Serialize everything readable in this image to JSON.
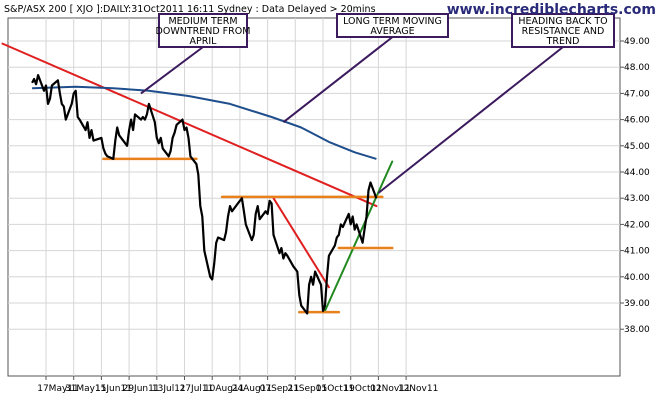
{
  "header": {
    "title": "S&P/ASX 200 [ XJO ]:DAILY:31Oct2011 16:11 Sydney : Data Delayed > 20mins",
    "brand": "www.incrediblecharts.com"
  },
  "chart_data": {
    "type": "line",
    "title": "S&P/ASX 200 [ XJO ]:DAILY:31Oct2011 16:11 Sydney : Data Delayed > 20mins",
    "xlabel": "",
    "ylabel": "",
    "ylim": [
      37.0,
      49.6
    ],
    "y_ticks": [
      "38.00",
      "39.00",
      "40.00",
      "41.00",
      "42.00",
      "43.00",
      "44.00",
      "45.00",
      "46.00",
      "47.00",
      "48.00",
      "49.00"
    ],
    "x_ticks": [
      "17May11",
      "31May11",
      "15Jun11",
      "29Jun11",
      "13Jul11",
      "27Jul11",
      "10Aug11",
      "24Aug11",
      "07Sep11",
      "21Sep11",
      "05Oct11",
      "19Oct11",
      "02Nov11",
      "12Nov11"
    ],
    "grid": true,
    "series": [
      {
        "role": "price",
        "color": "#000000",
        "points": [
          [
            "2011-05-10",
            47.4
          ],
          [
            "2011-05-11",
            47.55
          ],
          [
            "2011-05-12",
            47.35
          ],
          [
            "2011-05-13",
            47.7
          ],
          [
            "2011-05-16",
            47.1
          ],
          [
            "2011-05-17",
            47.3
          ],
          [
            "2011-05-18",
            46.6
          ],
          [
            "2011-05-19",
            46.8
          ],
          [
            "2011-05-20",
            47.3
          ],
          [
            "2011-05-23",
            47.5
          ],
          [
            "2011-05-24",
            47.0
          ],
          [
            "2011-05-25",
            46.6
          ],
          [
            "2011-05-26",
            46.5
          ],
          [
            "2011-05-27",
            46.0
          ],
          [
            "2011-05-30",
            46.6
          ],
          [
            "2011-05-31",
            47.0
          ],
          [
            "2011-06-01",
            47.1
          ],
          [
            "2011-06-02",
            46.1
          ],
          [
            "2011-06-03",
            46.0
          ],
          [
            "2011-06-06",
            45.6
          ],
          [
            "2011-06-07",
            45.9
          ],
          [
            "2011-06-08",
            45.3
          ],
          [
            "2011-06-09",
            45.6
          ],
          [
            "2011-06-10",
            45.2
          ],
          [
            "2011-06-14",
            45.3
          ],
          [
            "2011-06-15",
            44.9
          ],
          [
            "2011-06-16",
            44.7
          ],
          [
            "2011-06-17",
            44.6
          ],
          [
            "2011-06-20",
            44.5
          ],
          [
            "2011-06-21",
            45.2
          ],
          [
            "2011-06-22",
            45.7
          ],
          [
            "2011-06-23",
            45.4
          ],
          [
            "2011-06-24",
            45.3
          ],
          [
            "2011-06-27",
            45.0
          ],
          [
            "2011-06-28",
            45.6
          ],
          [
            "2011-06-29",
            46.0
          ],
          [
            "2011-06-30",
            45.6
          ],
          [
            "2011-07-01",
            46.2
          ],
          [
            "2011-07-04",
            46.0
          ],
          [
            "2011-07-05",
            46.1
          ],
          [
            "2011-07-06",
            46.0
          ],
          [
            "2011-07-07",
            46.2
          ],
          [
            "2011-07-08",
            46.6
          ],
          [
            "2011-07-11",
            45.9
          ],
          [
            "2011-07-12",
            45.3
          ],
          [
            "2011-07-13",
            45.1
          ],
          [
            "2011-07-14",
            45.3
          ],
          [
            "2011-07-15",
            44.9
          ],
          [
            "2011-07-18",
            44.6
          ],
          [
            "2011-07-19",
            44.8
          ],
          [
            "2011-07-20",
            45.3
          ],
          [
            "2011-07-21",
            45.5
          ],
          [
            "2011-07-22",
            45.8
          ],
          [
            "2011-07-25",
            46.0
          ],
          [
            "2011-07-26",
            45.6
          ],
          [
            "2011-07-27",
            45.7
          ],
          [
            "2011-07-28",
            45.3
          ],
          [
            "2011-07-29",
            44.6
          ],
          [
            "2011-08-01",
            44.3
          ],
          [
            "2011-08-02",
            43.9
          ],
          [
            "2011-08-03",
            42.7
          ],
          [
            "2011-08-04",
            42.3
          ],
          [
            "2011-08-05",
            41.0
          ],
          [
            "2011-08-08",
            40.0
          ],
          [
            "2011-08-09",
            39.9
          ],
          [
            "2011-08-10",
            40.5
          ],
          [
            "2011-08-11",
            41.3
          ],
          [
            "2011-08-12",
            41.5
          ],
          [
            "2011-08-15",
            41.4
          ],
          [
            "2011-08-16",
            41.7
          ],
          [
            "2011-08-17",
            42.3
          ],
          [
            "2011-08-18",
            42.7
          ],
          [
            "2011-08-19",
            42.5
          ],
          [
            "2011-08-22",
            42.8
          ],
          [
            "2011-08-23",
            42.9
          ],
          [
            "2011-08-24",
            43.0
          ],
          [
            "2011-08-25",
            42.5
          ],
          [
            "2011-08-26",
            42.0
          ],
          [
            "2011-08-29",
            41.4
          ],
          [
            "2011-08-30",
            41.6
          ],
          [
            "2011-08-31",
            42.4
          ],
          [
            "2011-09-01",
            42.7
          ],
          [
            "2011-09-02",
            42.2
          ],
          [
            "2011-09-05",
            42.5
          ],
          [
            "2011-09-06",
            42.4
          ],
          [
            "2011-09-07",
            42.9
          ],
          [
            "2011-09-08",
            42.8
          ],
          [
            "2011-09-09",
            41.6
          ],
          [
            "2011-09-12",
            40.9
          ],
          [
            "2011-09-13",
            41.1
          ],
          [
            "2011-09-14",
            40.7
          ],
          [
            "2011-09-15",
            40.9
          ],
          [
            "2011-09-16",
            40.8
          ],
          [
            "2011-09-19",
            40.4
          ],
          [
            "2011-09-20",
            40.3
          ],
          [
            "2011-09-21",
            40.2
          ],
          [
            "2011-09-22",
            39.3
          ],
          [
            "2011-09-23",
            38.9
          ],
          [
            "2011-09-26",
            38.6
          ],
          [
            "2011-09-27",
            39.7
          ],
          [
            "2011-09-28",
            40.0
          ],
          [
            "2011-09-29",
            39.7
          ],
          [
            "2011-09-30",
            40.2
          ],
          [
            "2011-10-03",
            39.7
          ],
          [
            "2011-10-04",
            38.7
          ],
          [
            "2011-10-05",
            38.9
          ],
          [
            "2011-10-06",
            40.0
          ],
          [
            "2011-10-07",
            40.8
          ],
          [
            "2011-10-10",
            41.2
          ],
          [
            "2011-10-11",
            41.5
          ],
          [
            "2011-10-12",
            41.6
          ],
          [
            "2011-10-13",
            42.0
          ],
          [
            "2011-10-14",
            41.9
          ],
          [
            "2011-10-17",
            42.4
          ],
          [
            "2011-10-18",
            42.0
          ],
          [
            "2011-10-19",
            42.3
          ],
          [
            "2011-10-20",
            41.8
          ],
          [
            "2011-10-21",
            42.0
          ],
          [
            "2011-10-24",
            41.3
          ],
          [
            "2011-10-25",
            41.8
          ],
          [
            "2011-10-26",
            42.3
          ],
          [
            "2011-10-27",
            43.3
          ],
          [
            "2011-10-28",
            43.6
          ],
          [
            "2011-10-31",
            43.0
          ]
        ]
      },
      {
        "role": "long term moving average",
        "color": "#1f4e8c",
        "points": [
          [
            "2011-05-10",
            47.2
          ],
          [
            "2011-06-01",
            47.25
          ],
          [
            "2011-06-20",
            47.2
          ],
          [
            "2011-07-08",
            47.1
          ],
          [
            "2011-07-28",
            46.9
          ],
          [
            "2011-08-18",
            46.6
          ],
          [
            "2011-09-08",
            46.1
          ],
          [
            "2011-09-23",
            45.7
          ],
          [
            "2011-10-07",
            45.15
          ],
          [
            "2011-10-20",
            44.75
          ],
          [
            "2011-10-31",
            44.5
          ]
        ]
      }
    ],
    "trendlines": [
      {
        "label": "Medium Term Downtrend",
        "color": "#e02020",
        "from": [
          "2011-04-25",
          48.9
        ],
        "to": [
          "2011-10-31",
          42.7
        ]
      },
      {
        "label": "",
        "color": "#e02020",
        "from": [
          "2011-09-09",
          43.0
        ],
        "to": [
          "2011-10-07",
          39.6
        ]
      },
      {
        "label": "Rising trend",
        "color": "#208a20",
        "from": [
          "2011-10-05",
          38.7
        ],
        "to": [
          "2011-11-08",
          44.4
        ]
      },
      {
        "label": "",
        "color": "#e8801c",
        "from": [
          "2011-06-15",
          44.5
        ],
        "to": [
          "2011-08-01",
          44.5
        ]
      },
      {
        "label": "",
        "color": "#e8801c",
        "from": [
          "2011-08-14",
          43.05
        ],
        "to": [
          "2011-11-03",
          43.05
        ]
      },
      {
        "label": "",
        "color": "#e8801c",
        "from": [
          "2011-09-22",
          38.65
        ],
        "to": [
          "2011-10-12",
          38.65
        ]
      },
      {
        "label": "",
        "color": "#e8801c",
        "from": [
          "2011-10-12",
          41.1
        ],
        "to": [
          "2011-11-08",
          41.1
        ]
      }
    ],
    "annotations": [
      {
        "lines": [
          "MEDIUM TERM",
          "DOWNTREND FROM",
          "APRIL"
        ],
        "points_to": [
          "2011-07-04",
          47.0
        ]
      },
      {
        "lines": [
          "LONG TERM MOVING",
          "AVERAGE"
        ],
        "points_to": [
          "2011-09-14",
          45.9
        ]
      },
      {
        "lines": [
          "HEADING BACK TO",
          "RESISTANCE AND",
          "TREND"
        ],
        "points_to": [
          "2011-11-01",
          43.2
        ]
      }
    ]
  }
}
